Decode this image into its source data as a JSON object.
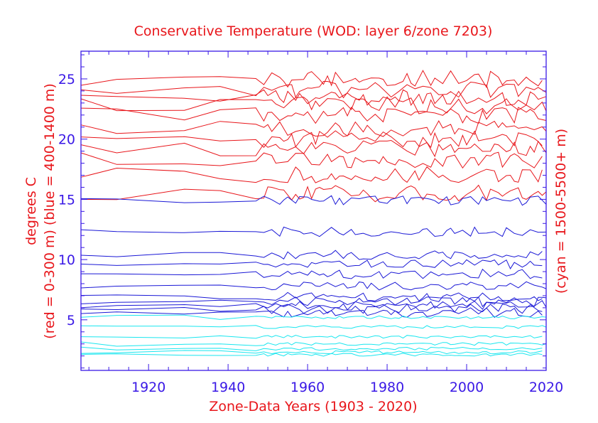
{
  "chart_data": {
    "type": "line",
    "title": "Conservative Temperature (WOD: layer 6/zone 7203)",
    "xlabel": "Zone-Data Years (1903 - 2020)",
    "ylabel_left_line1": "degrees C",
    "ylabel_left_line2": "(red = 0-300 m)  (blue = 400-1400 m)",
    "ylabel_right": "(cyan = 1500-5500+ m)",
    "xlim": [
      1903,
      2020
    ],
    "ylim": [
      0.8,
      27.3
    ],
    "xticks": [
      1920,
      1940,
      1960,
      1980,
      2000,
      2020
    ],
    "yticks": [
      5,
      10,
      15,
      20,
      25
    ],
    "colors": {
      "red": "#e8161b",
      "blue": "#1a18d6",
      "cyan": "#19e6ef",
      "axis": "#3a19e6"
    },
    "groups": [
      {
        "name": "red = 0-300 m",
        "color": "red",
        "baselines": [
          25.0,
          24.1,
          23.4,
          22.8,
          22.0,
          20.9,
          20.0,
          19.2,
          18.3,
          17.0,
          15.5
        ],
        "start_offsets": [
          0.0,
          0.0,
          0.0,
          0.0,
          0.0,
          0.0,
          0.0,
          0.0,
          0.0,
          0.0,
          0.0
        ]
      },
      {
        "name": "blue = 400-1400 m",
        "color": "blue",
        "baselines": [
          14.9,
          12.3,
          10.4,
          9.6,
          8.8,
          7.8,
          6.9,
          6.5,
          6.2,
          5.9,
          5.6
        ],
        "start_offsets": [
          0.0,
          0.0,
          0.0,
          0.0,
          0.0,
          0.0,
          0.0,
          0.0,
          0.0,
          0.0,
          0.0
        ]
      },
      {
        "name": "cyan = 1500-5500+ m",
        "color": "cyan",
        "baselines": [
          5.2,
          4.4,
          3.6,
          3.0,
          2.6,
          2.3,
          2.1
        ],
        "start_offsets": [
          0.0,
          0.0,
          0.0,
          0.0,
          0.0,
          0.0,
          0.0
        ]
      }
    ],
    "sample_years": [
      1903,
      1912,
      1929,
      1938,
      1947,
      1951,
      1955,
      1960,
      1964,
      1969,
      1975,
      1980,
      1985,
      1990,
      1995,
      2000,
      2005,
      2010,
      2015,
      2020
    ]
  }
}
